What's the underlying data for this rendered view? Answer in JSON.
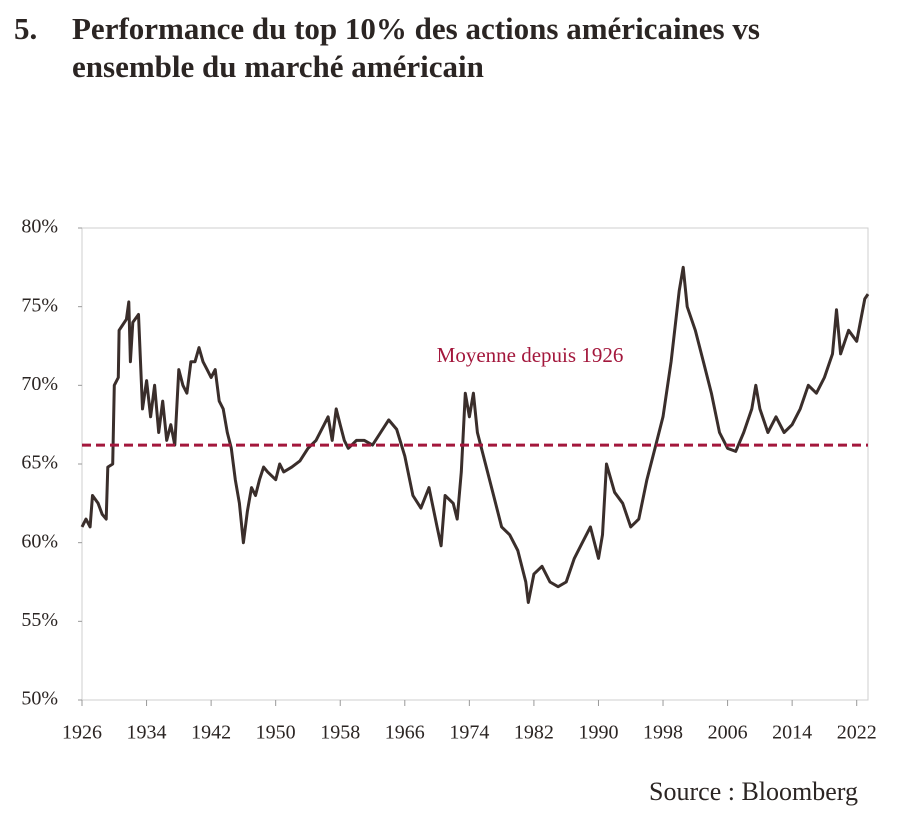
{
  "chart_data": {
    "type": "line",
    "number": "5.",
    "title": "Performance du top 10% des actions américaines vs ensemble du marché américain",
    "source": "Source : Bloomberg",
    "x": [
      1926,
      1926.5,
      1927,
      1927.3,
      1928,
      1928.5,
      1929,
      1929.2,
      1929.8,
      1930,
      1930.5,
      1930.6,
      1931,
      1931.5,
      1931.8,
      1932,
      1932.3,
      1933,
      1933.5,
      1934,
      1934.5,
      1935,
      1935.5,
      1936,
      1936.5,
      1937,
      1937.5,
      1938,
      1938.5,
      1939,
      1939.5,
      1940,
      1940.5,
      1941,
      1941.5,
      1942,
      1942.5,
      1943,
      1943.5,
      1944,
      1944.5,
      1945,
      1945.5,
      1946,
      1946.5,
      1947,
      1947.5,
      1948,
      1948.5,
      1949,
      1950,
      1950.5,
      1951,
      1952,
      1953,
      1954,
      1955,
      1956,
      1956.5,
      1957,
      1957.5,
      1958,
      1958.5,
      1959,
      1960,
      1961,
      1962,
      1963,
      1964,
      1965,
      1966,
      1967,
      1968,
      1969,
      1970,
      1970.5,
      1971,
      1972,
      1972.5,
      1973,
      1973.5,
      1974,
      1974.5,
      1975,
      1976,
      1977,
      1978,
      1979,
      1980,
      1981,
      1981.3,
      1982,
      1983,
      1984,
      1985,
      1986,
      1987,
      1988,
      1989,
      1990,
      1990.5,
      1991,
      1992,
      1993,
      1994,
      1995,
      1996,
      1997,
      1998,
      1999,
      2000,
      2000.5,
      2001,
      2002,
      2003,
      2004,
      2005,
      2006,
      2007,
      2008,
      2009,
      2009.5,
      2010,
      2011,
      2012,
      2013,
      2014,
      2015,
      2016,
      2017,
      2018,
      2019,
      2019.5,
      2020,
      2021,
      2022,
      2023,
      2023.4
    ],
    "series": [
      {
        "name": "Top 10%",
        "color": "#3a2e2b",
        "values": [
          61,
          61.5,
          61,
          63,
          62.5,
          61.8,
          61.5,
          64.8,
          65,
          70,
          70.5,
          73.5,
          73.8,
          74.2,
          75.3,
          71.5,
          74,
          74.5,
          68.5,
          70.3,
          68,
          70,
          67,
          69,
          66.5,
          67.5,
          66.2,
          71,
          70,
          69.5,
          71.5,
          71.5,
          72.4,
          71.5,
          71,
          70.5,
          71,
          69,
          68.5,
          67,
          66,
          64,
          62.5,
          60,
          62,
          63.5,
          63,
          64,
          64.8,
          64.5,
          64,
          65,
          64.5,
          64.8,
          65.2,
          66,
          66.5,
          67.5,
          68,
          66.5,
          68.5,
          67.5,
          66.5,
          66,
          66.5,
          66.5,
          66.2,
          67,
          67.8,
          67.2,
          65.5,
          63,
          62.2,
          63.5,
          61,
          59.8,
          63,
          62.5,
          61.5,
          64.5,
          69.5,
          68,
          69.5,
          67,
          65,
          63,
          61,
          60.5,
          59.5,
          57.5,
          56.2,
          58,
          58.5,
          57.5,
          57.2,
          57.5,
          59,
          60,
          61,
          59,
          60.5,
          65,
          63.2,
          62.5,
          61,
          61.5,
          64,
          66,
          68,
          71.5,
          76,
          77.5,
          75,
          73.5,
          71.5,
          69.5,
          67,
          66,
          65.8,
          67,
          68.5,
          70,
          68.5,
          67,
          68,
          67,
          67.5,
          68.5,
          70,
          69.5,
          70.5,
          72,
          74.8,
          72,
          73.5,
          72.8,
          75.5,
          75.8
        ]
      }
    ],
    "reference_line": {
      "label": "Moyenne depuis 1926",
      "value": 66.2,
      "color": "#a3173c"
    },
    "xlim": [
      1926,
      2023.4
    ],
    "xticks": [
      1926,
      1934,
      1942,
      1950,
      1958,
      1966,
      1974,
      1982,
      1990,
      1998,
      2006,
      2014,
      2022
    ],
    "ylim": [
      50,
      80
    ],
    "yticks": [
      {
        "value": 50,
        "label": "50%"
      },
      {
        "value": 55,
        "label": "55%"
      },
      {
        "value": 60,
        "label": "60%"
      },
      {
        "value": 65,
        "label": "65%"
      },
      {
        "value": 70,
        "label": "70%"
      },
      {
        "value": 75,
        "label": "75%"
      },
      {
        "value": 80,
        "label": "80%"
      }
    ]
  }
}
